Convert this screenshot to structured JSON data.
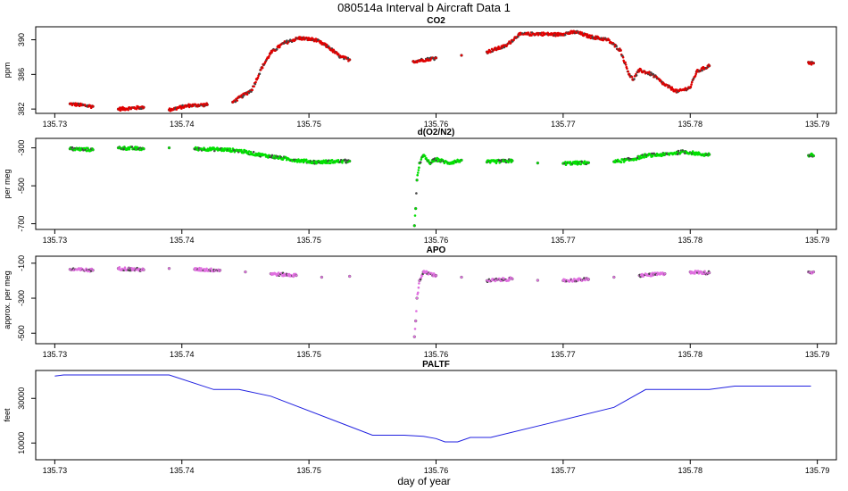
{
  "title": "080514a   Interval b Aircraft Data 1",
  "chart_data": [
    {
      "type": "scatter",
      "title": "CO2",
      "xlabel": "",
      "ylabel": "ppm",
      "xlim": [
        135.7285,
        135.7915
      ],
      "ylim": [
        381.5,
        391.5
      ],
      "xticks": [
        "135.73",
        "135.74",
        "135.75",
        "135.76",
        "135.77",
        "135.78",
        "135.79"
      ],
      "yticks": [
        "382",
        "386",
        "390"
      ],
      "color": "#e00000",
      "points": [
        [
          135.7312,
          382.6
        ],
        [
          135.733,
          382.3
        ],
        [
          135.735,
          382.0
        ],
        [
          135.737,
          382.2
        ],
        [
          135.739,
          381.9
        ],
        [
          135.7405,
          382.4
        ],
        [
          135.742,
          382.5
        ],
        [
          135.744,
          382.8
        ],
        [
          135.7455,
          384.2
        ],
        [
          135.7463,
          386.8
        ],
        [
          135.747,
          388.5
        ],
        [
          135.748,
          389.6
        ],
        [
          135.7492,
          390.2
        ],
        [
          135.7505,
          390.0
        ],
        [
          135.7515,
          389.2
        ],
        [
          135.7525,
          388.0
        ],
        [
          135.7532,
          387.7
        ],
        [
          135.7582,
          387.5
        ],
        [
          135.76,
          387.9
        ],
        [
          135.762,
          388.2
        ],
        [
          135.764,
          388.6
        ],
        [
          135.7655,
          389.3
        ],
        [
          135.7665,
          390.6
        ],
        [
          135.768,
          390.7
        ],
        [
          135.7695,
          390.6
        ],
        [
          135.771,
          390.9
        ],
        [
          135.772,
          390.4
        ],
        [
          135.7735,
          390.0
        ],
        [
          135.7745,
          388.8
        ],
        [
          135.7752,
          386.0
        ],
        [
          135.7755,
          385.4
        ],
        [
          135.776,
          386.5
        ],
        [
          135.777,
          386.0
        ],
        [
          135.778,
          384.8
        ],
        [
          135.779,
          384.0
        ],
        [
          135.78,
          384.5
        ],
        [
          135.7805,
          386.3
        ],
        [
          135.7815,
          387.0
        ],
        [
          135.7893,
          387.4
        ],
        [
          135.7895,
          387.3
        ],
        [
          135.7897,
          387.3
        ]
      ]
    },
    {
      "type": "scatter",
      "title": "d(O2/N2)",
      "xlabel": "",
      "ylabel": "per meg",
      "xlim": [
        135.7285,
        135.7915
      ],
      "ylim": [
        -730,
        -250
      ],
      "xticks": [
        "135.73",
        "135.74",
        "135.75",
        "135.76",
        "135.77",
        "135.78",
        "135.79"
      ],
      "yticks": [
        "-700",
        "-500",
        "-300"
      ],
      "color": "#00e000",
      "points": [
        [
          135.7312,
          -305
        ],
        [
          135.733,
          -310
        ],
        [
          135.735,
          -300
        ],
        [
          135.737,
          -305
        ],
        [
          135.739,
          -300
        ],
        [
          135.741,
          -305
        ],
        [
          135.743,
          -308
        ],
        [
          135.7445,
          -315
        ],
        [
          135.746,
          -335
        ],
        [
          135.7475,
          -350
        ],
        [
          135.749,
          -365
        ],
        [
          135.7505,
          -375
        ],
        [
          135.752,
          -372
        ],
        [
          135.7532,
          -370
        ],
        [
          135.7583,
          -710
        ],
        [
          135.7584,
          -620
        ],
        [
          135.7585,
          -470
        ],
        [
          135.7587,
          -380
        ],
        [
          135.759,
          -340
        ],
        [
          135.7595,
          -380
        ],
        [
          135.76,
          -360
        ],
        [
          135.761,
          -380
        ],
        [
          135.762,
          -365
        ],
        [
          135.764,
          -375
        ],
        [
          135.766,
          -368
        ],
        [
          135.768,
          -380
        ],
        [
          135.77,
          -382
        ],
        [
          135.772,
          -378
        ],
        [
          135.774,
          -373
        ],
        [
          135.7755,
          -360
        ],
        [
          135.7765,
          -340
        ],
        [
          135.778,
          -335
        ],
        [
          135.7795,
          -320
        ],
        [
          135.781,
          -335
        ],
        [
          135.7815,
          -335
        ],
        [
          135.7893,
          -340
        ],
        [
          135.7895,
          -338
        ],
        [
          135.7897,
          -342
        ]
      ]
    },
    {
      "type": "scatter",
      "title": "APO",
      "xlabel": "",
      "ylabel": "approx. per meg",
      "xlim": [
        135.7285,
        135.7915
      ],
      "ylim": [
        -560,
        -60
      ],
      "xticks": [
        "135.73",
        "135.74",
        "135.75",
        "135.76",
        "135.77",
        "135.78",
        "135.79"
      ],
      "yticks": [
        "-500",
        "-300",
        "-100"
      ],
      "color": "#e070e0",
      "points": [
        [
          135.7312,
          -135
        ],
        [
          135.733,
          -140
        ],
        [
          135.735,
          -130
        ],
        [
          135.737,
          -138
        ],
        [
          135.739,
          -130
        ],
        [
          135.741,
          -135
        ],
        [
          135.743,
          -140
        ],
        [
          135.745,
          -150
        ],
        [
          135.747,
          -160
        ],
        [
          135.749,
          -170
        ],
        [
          135.751,
          -180
        ],
        [
          135.7532,
          -175
        ],
        [
          135.7583,
          -520
        ],
        [
          135.7584,
          -430
        ],
        [
          135.7585,
          -300
        ],
        [
          135.7587,
          -200
        ],
        [
          135.759,
          -150
        ],
        [
          135.76,
          -170
        ],
        [
          135.762,
          -180
        ],
        [
          135.764,
          -200
        ],
        [
          135.766,
          -190
        ],
        [
          135.768,
          -198
        ],
        [
          135.77,
          -200
        ],
        [
          135.772,
          -192
        ],
        [
          135.774,
          -180
        ],
        [
          135.776,
          -170
        ],
        [
          135.778,
          -160
        ],
        [
          135.78,
          -150
        ],
        [
          135.7815,
          -155
        ],
        [
          135.7893,
          -150
        ],
        [
          135.7895,
          -152
        ],
        [
          135.7897,
          -150
        ]
      ]
    },
    {
      "type": "line",
      "title": "PALTF",
      "xlabel": "day of year",
      "ylabel": "feet",
      "xlim": [
        135.7285,
        135.7915
      ],
      "ylim": [
        2500,
        42500
      ],
      "xticks": [
        "135.73",
        "135.74",
        "135.75",
        "135.76",
        "135.77",
        "135.78",
        "135.79"
      ],
      "yticks": [
        "10000",
        "30000"
      ],
      "color": "#2020e0",
      "points": [
        [
          135.73,
          40000
        ],
        [
          135.7307,
          40500
        ],
        [
          135.739,
          40500
        ],
        [
          135.7425,
          34000
        ],
        [
          135.7445,
          34000
        ],
        [
          135.747,
          31000
        ],
        [
          135.755,
          13500
        ],
        [
          135.7575,
          13500
        ],
        [
          135.759,
          13000
        ],
        [
          135.76,
          12000
        ],
        [
          135.7607,
          10500
        ],
        [
          135.7617,
          10500
        ],
        [
          135.7627,
          12500
        ],
        [
          135.7643,
          12500
        ],
        [
          135.769,
          19000
        ],
        [
          135.774,
          26000
        ],
        [
          135.7765,
          34000
        ],
        [
          135.7805,
          34000
        ],
        [
          135.7815,
          34000
        ],
        [
          135.7835,
          35500
        ],
        [
          135.784,
          35500
        ],
        [
          135.7895,
          35500
        ]
      ]
    }
  ]
}
